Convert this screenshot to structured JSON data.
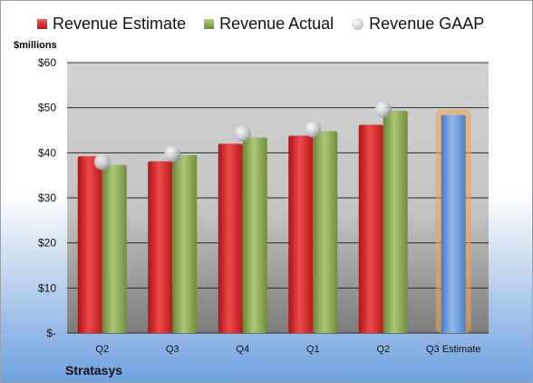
{
  "chart_data": {
    "type": "bar",
    "categories": [
      "Q2",
      "Q3",
      "Q4",
      "Q1",
      "Q2",
      "Q3 Estimate"
    ],
    "series": [
      {
        "name": "Revenue Estimate",
        "values": [
          39.2,
          38.1,
          42.0,
          43.8,
          46.2,
          null
        ],
        "color": "#d42a2a"
      },
      {
        "name": "Revenue Actual",
        "values": [
          37.3,
          39.5,
          43.4,
          44.8,
          49.3,
          null
        ],
        "color": "#8aa854"
      },
      {
        "name": "Revenue GAAP",
        "values": [
          38.0,
          39.8,
          44.3,
          45.2,
          49.6,
          null
        ],
        "color": "#c9ccd1"
      },
      {
        "name": "Q3 Estimate",
        "values": [
          null,
          null,
          null,
          null,
          null,
          48.4
        ],
        "color": "#6b9ad6"
      }
    ],
    "ylabel": "$millions",
    "ylim": [
      0,
      60
    ],
    "yticks": [
      "$-",
      "$10",
      "$20",
      "$30",
      "$40",
      "$50",
      "$60"
    ],
    "ytick_values": [
      0,
      10,
      20,
      30,
      40,
      50,
      60
    ],
    "grid": true,
    "legend": "top",
    "company": "Stratasys"
  }
}
